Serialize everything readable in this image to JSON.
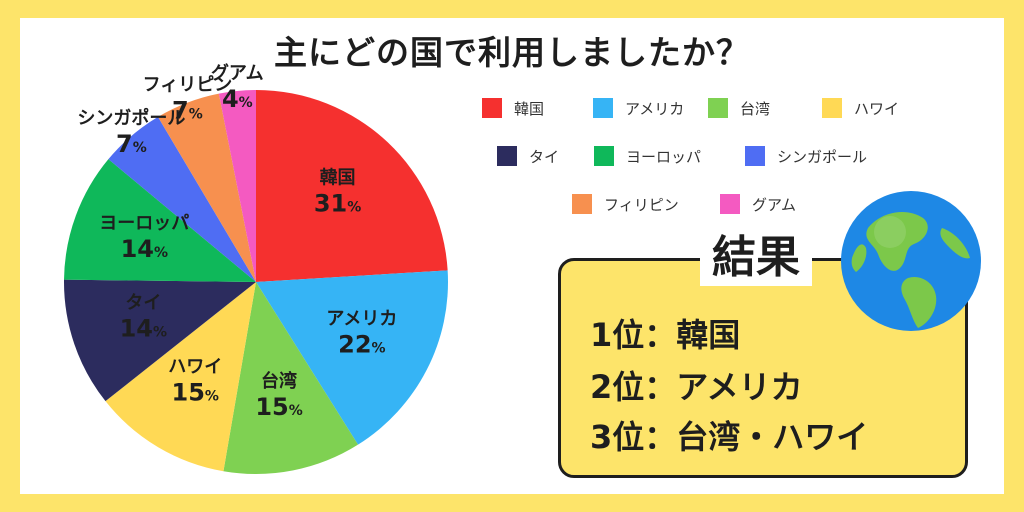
{
  "title": "主にどの国で利用しましたか？",
  "chart_data": {
    "type": "pie",
    "title": "主にどの国で利用しましたか？",
    "unit": "%",
    "slices": [
      {
        "label": "韓国",
        "value": 31,
        "color": "#f5302f"
      },
      {
        "label": "アメリカ",
        "value": 22,
        "color": "#36b4f5"
      },
      {
        "label": "台湾",
        "value": 15,
        "color": "#7fd152"
      },
      {
        "label": "ハワイ",
        "value": 15,
        "color": "#ffd955"
      },
      {
        "label": "タイ",
        "value": 14,
        "color": "#2c2c5e"
      },
      {
        "label": "ヨーロッパ",
        "value": 14,
        "color": "#0fb85a"
      },
      {
        "label": "シンガポール",
        "value": 7,
        "color": "#4f6df3"
      },
      {
        "label": "フィリピン",
        "value": 7,
        "color": "#f7904f"
      },
      {
        "label": "グアム",
        "value": 4,
        "color": "#f45ac1"
      }
    ],
    "legend": [
      "韓国",
      "アメリカ",
      "台湾",
      "ハワイ",
      "タイ",
      "ヨーロッパ",
      "シンガポール",
      "フィリピン",
      "グアム"
    ],
    "legend_position": "top-right"
  },
  "result": {
    "title": "結果",
    "lines": [
      "1位：韓国",
      "2位：アメリカ",
      "3位：台湾・ハワイ"
    ]
  },
  "colors": {
    "background": "#fde46a",
    "card": "#ffffff",
    "ocean": "#1e88e5",
    "land": "#7cc84a"
  },
  "icons": {
    "globe": "globe-icon"
  }
}
